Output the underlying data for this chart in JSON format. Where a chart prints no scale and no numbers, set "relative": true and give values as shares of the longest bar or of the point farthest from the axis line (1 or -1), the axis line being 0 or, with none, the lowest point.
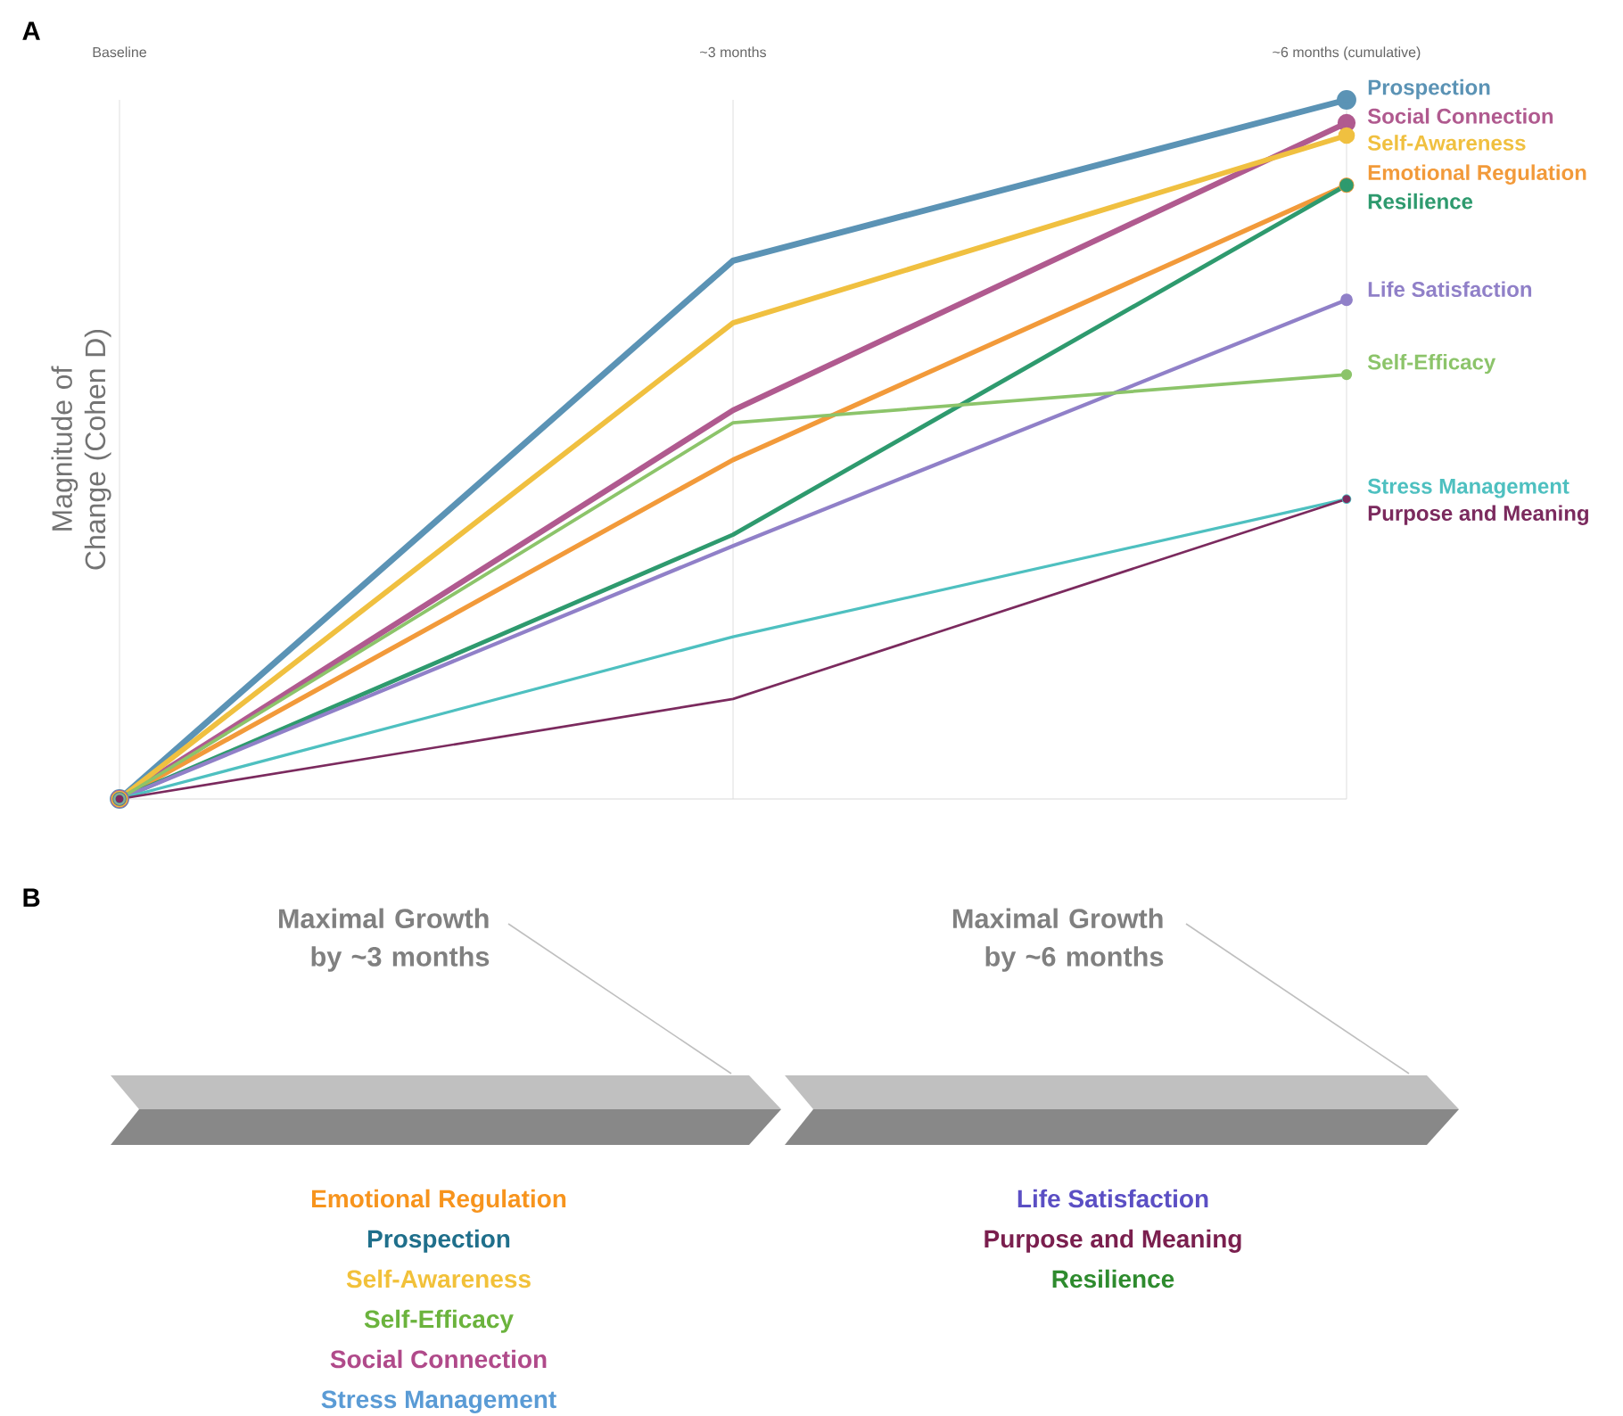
{
  "chart_data": [
    {
      "type": "line",
      "title": "A",
      "ylabel": "Magnitude of Change (Cohen D)",
      "relative": true,
      "grid": "x",
      "legend": false,
      "marker": "circle",
      "line_style": "solid",
      "categories": [
        "Baseline",
        "~3 months",
        "~6 months (cumulative)"
      ],
      "series": [
        {
          "name": "Prospection",
          "color": "#5b93b5",
          "values": [
            0,
            0.77,
            1
          ]
        },
        {
          "name": "Social Connection",
          "color": "#b05a8f",
          "values": [
            0,
            0.556,
            0.967
          ]
        },
        {
          "name": "Self-Awareness",
          "color": "#f0c040",
          "values": [
            0,
            0.681,
            0.949
          ]
        },
        {
          "name": "Emotional Regulation",
          "color": "#f29a3a",
          "values": [
            0,
            0.485,
            0.878
          ]
        },
        {
          "name": "Resilience",
          "color": "#2e9a6e",
          "values": [
            0,
            0.378,
            0.878
          ]
        },
        {
          "name": "Life Satisfaction",
          "color": "#9080c8",
          "values": [
            0,
            0.362,
            0.714
          ]
        },
        {
          "name": "Self-Efficacy",
          "color": "#8cc46a",
          "values": [
            0,
            0.538,
            0.607
          ]
        },
        {
          "name": "Stress Management",
          "color": "#4ec0c0",
          "values": [
            0,
            0.232,
            0.429
          ]
        },
        {
          "name": "Purpose and Meaning",
          "color": "#7b2a5e",
          "values": [
            0,
            0.143,
            0.429
          ]
        }
      ]
    },
    {
      "type": "other",
      "title": "B",
      "categories": [
        "Maximal Growth by ~3 months",
        "Maximal Growth by ~6 months"
      ],
      "annotations": [
        {
          "text": "Emotional Regulation",
          "x": "Maximal Growth by ~3 months"
        },
        {
          "text": "Prospection",
          "x": "Maximal Growth by ~3 months"
        },
        {
          "text": "Self-Awareness",
          "x": "Maximal Growth by ~3 months"
        },
        {
          "text": "Self-Efficacy",
          "x": "Maximal Growth by ~3 months"
        },
        {
          "text": "Social Connection",
          "x": "Maximal Growth by ~3 months"
        },
        {
          "text": "Stress Management",
          "x": "Maximal Growth by ~3 months"
        },
        {
          "text": "Life Satisfaction",
          "x": "Maximal Growth by ~6 months"
        },
        {
          "text": "Purpose and Meaning",
          "x": "Maximal Growth by ~6 months"
        },
        {
          "text": "Resilience",
          "x": "Maximal Growth by ~6 months"
        }
      ],
      "colors": [
        "#f7941d",
        "#1f6f8b",
        "#f2c13a",
        "#6bb33d",
        "#b04a8a",
        "#5a9bd5",
        "#5b4fc4",
        "#7a1f4e",
        "#2e8b2e"
      ]
    }
  ]
}
